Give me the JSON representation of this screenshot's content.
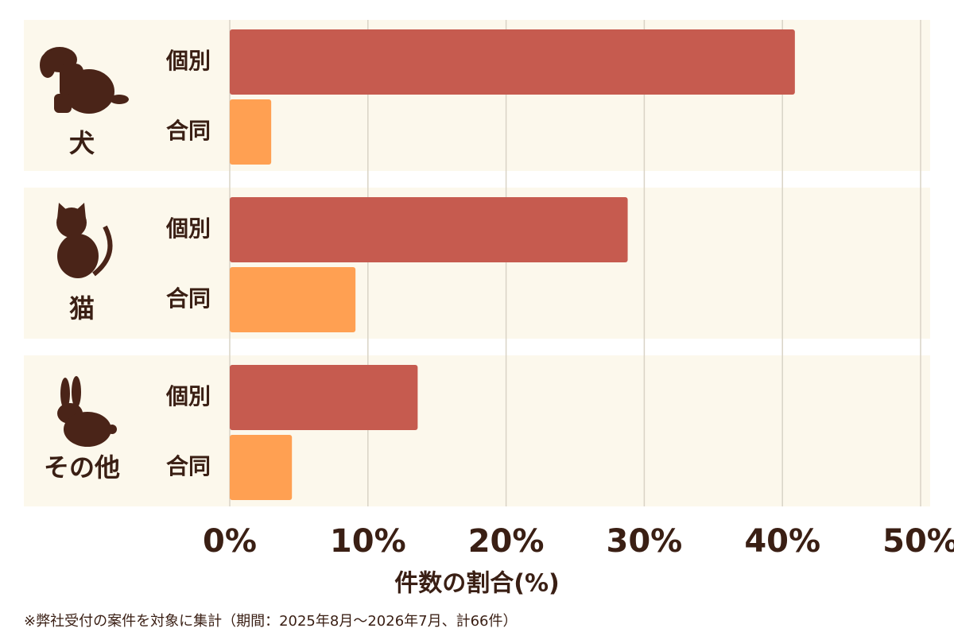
{
  "chart_data": {
    "type": "grouped-hbar",
    "groups": [
      "犬",
      "猫",
      "その他"
    ],
    "series": [
      {
        "name": "個別",
        "color": "#c65b4f",
        "values": [
          40.9,
          28.8,
          13.6
        ]
      },
      {
        "name": "合同",
        "color": "#ffa052",
        "values": [
          3.0,
          9.1,
          4.5
        ]
      }
    ],
    "xlim": [
      0,
      50
    ],
    "xticks": [
      {
        "value": 0,
        "label": "0%"
      },
      {
        "value": 10,
        "label": "10%"
      },
      {
        "value": 20,
        "label": "20%"
      },
      {
        "value": 30,
        "label": "30%"
      },
      {
        "value": 40,
        "label": "40%"
      },
      {
        "value": 50,
        "label": "50%"
      }
    ],
    "xlabel": "件数の割合(%)",
    "note": "※弊社受付の案件を対象に集計（期間：2025年8月〜2026年7月、計66件）",
    "grid": true
  }
}
